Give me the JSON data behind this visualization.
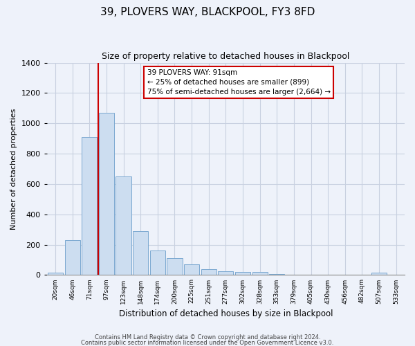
{
  "title": "39, PLOVERS WAY, BLACKPOOL, FY3 8FD",
  "subtitle": "Size of property relative to detached houses in Blackpool",
  "xlabel": "Distribution of detached houses by size in Blackpool",
  "ylabel": "Number of detached properties",
  "bin_labels": [
    "20sqm",
    "46sqm",
    "71sqm",
    "97sqm",
    "123sqm",
    "148sqm",
    "174sqm",
    "200sqm",
    "225sqm",
    "251sqm",
    "277sqm",
    "302sqm",
    "328sqm",
    "353sqm",
    "379sqm",
    "405sqm",
    "430sqm",
    "456sqm",
    "482sqm",
    "507sqm",
    "533sqm"
  ],
  "bar_values": [
    15,
    230,
    910,
    1070,
    650,
    290,
    160,
    110,
    70,
    40,
    25,
    20,
    18,
    5,
    3,
    2,
    2,
    1,
    1,
    15,
    1
  ],
  "bar_color": "#ccddf0",
  "bar_edgecolor": "#7aa8d0",
  "vline_x": 2.5,
  "vline_color": "#cc0000",
  "annotation_line1": "39 PLOVERS WAY: 91sqm",
  "annotation_line2": "← 25% of detached houses are smaller (899)",
  "annotation_line3": "75% of semi-detached houses are larger (2,664) →",
  "annotation_box_facecolor": "#ffffff",
  "annotation_box_edgecolor": "#cc0000",
  "ylim": [
    0,
    1400
  ],
  "yticks": [
    0,
    200,
    400,
    600,
    800,
    1000,
    1200,
    1400
  ],
  "footer1": "Contains HM Land Registry data © Crown copyright and database right 2024.",
  "footer2": "Contains public sector information licensed under the Open Government Licence v3.0.",
  "background_color": "#eef2fa",
  "grid_color": "#c8d0e0",
  "title_fontsize": 11,
  "subtitle_fontsize": 9
}
